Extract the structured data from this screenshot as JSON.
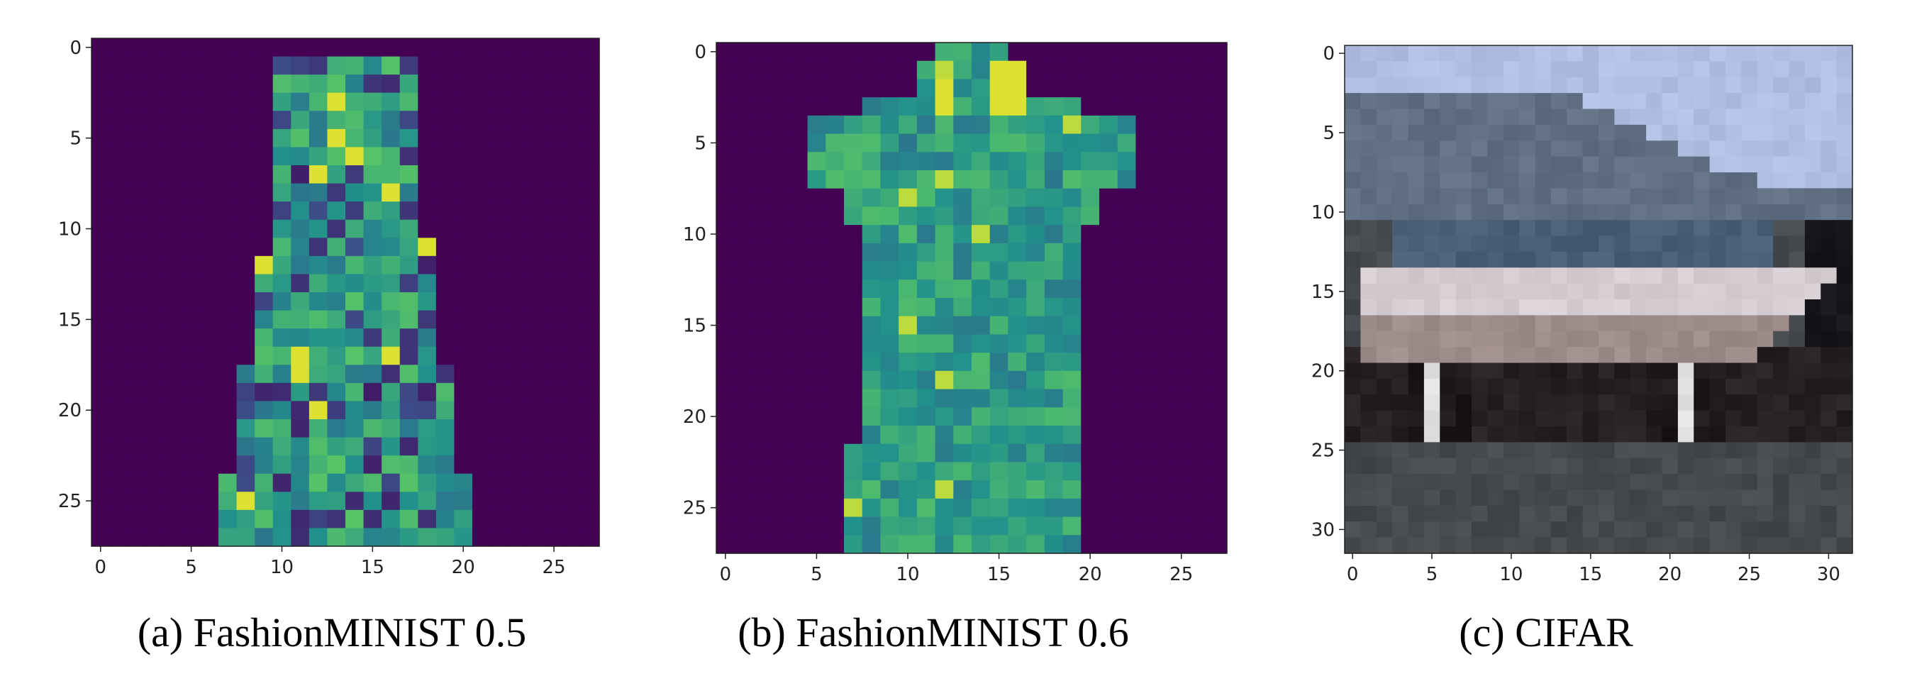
{
  "chart_data": [
    {
      "type": "heatmap",
      "caption_label": "(a)",
      "caption_text": "FashionMINIST 0.5",
      "colormap": "viridis",
      "rows": 28,
      "cols": 28,
      "xlim": [
        -0.5,
        27.5
      ],
      "ylim": [
        27.5,
        -0.5
      ],
      "xticks": [
        0,
        5,
        10,
        15,
        20,
        25
      ],
      "yticks": [
        0,
        5,
        10,
        15,
        20,
        25
      ],
      "grid": false,
      "content": "dress-shaped item, columns ~7-20, rows 1-27, speckled pattern"
    },
    {
      "type": "heatmap",
      "caption_label": "(b)",
      "caption_text": "FashionMINIST 0.6",
      "colormap": "viridis",
      "rows": 28,
      "cols": 28,
      "xlim": [
        -0.5,
        27.5
      ],
      "ylim": [
        27.5,
        -0.5
      ],
      "xticks": [
        0,
        5,
        10,
        15,
        20,
        25
      ],
      "yticks": [
        0,
        5,
        10,
        15,
        20,
        25
      ],
      "grid": false,
      "content": "t-shirt/dress silhouette with shoulders at rows 4-7, body columns ~7-19"
    },
    {
      "type": "heatmap",
      "caption_label": "(c)",
      "caption_text": "CIFAR",
      "colormap": "rgb",
      "rows": 32,
      "cols": 32,
      "xlim": [
        -0.5,
        31.5
      ],
      "ylim": [
        31.5,
        -0.5
      ],
      "xticks": [
        0,
        5,
        10,
        15,
        20,
        25,
        30
      ],
      "yticks": [
        0,
        5,
        10,
        15,
        20,
        25,
        30
      ],
      "grid": false,
      "content": "silver car in front of a mountain under a pale sky"
    }
  ]
}
